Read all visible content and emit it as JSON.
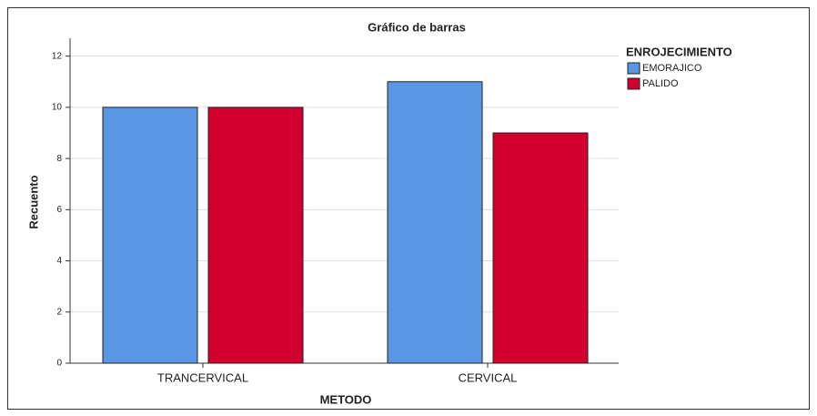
{
  "chart_data": {
    "type": "bar",
    "title": "Gráfico de barras",
    "x_label": "METODO",
    "y_label": "Recuento",
    "categories": [
      "TRANCERVICAL",
      "CERVICAL"
    ],
    "series": [
      {
        "name": "EMORAJICO",
        "color": "#5a96e3",
        "values": [
          10,
          11
        ]
      },
      {
        "name": "PALIDO",
        "color": "#d2002f",
        "values": [
          10,
          9
        ]
      }
    ],
    "legend_title": "ENROJECIMIENTO",
    "legend": "right",
    "ylim": [
      0,
      12.7
    ],
    "yticks": [
      0,
      2,
      4,
      6,
      8,
      10,
      12
    ],
    "grid": true
  }
}
